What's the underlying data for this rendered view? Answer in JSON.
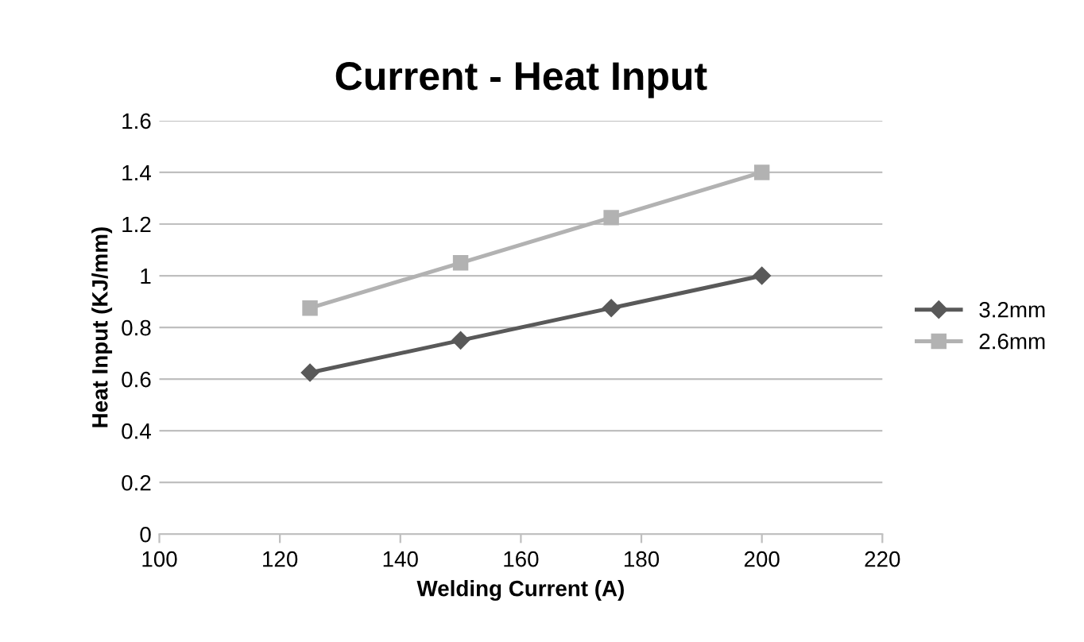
{
  "chart_data": {
    "type": "line",
    "title": "Current - Heat Input",
    "xlabel": "Welding Current (A)",
    "ylabel": "Heat Input (KJ/mm)",
    "x": [
      125,
      150,
      175,
      200
    ],
    "series": [
      {
        "name": "3.2mm",
        "color": "#595959",
        "marker": "diamond",
        "values": [
          0.625,
          0.75,
          0.875,
          1.0
        ]
      },
      {
        "name": "2.6mm",
        "color": "#b2b2b2",
        "marker": "square",
        "values": [
          0.875,
          1.05,
          1.225,
          1.4
        ]
      }
    ],
    "xlim": [
      100,
      220
    ],
    "xticks": [
      100,
      120,
      140,
      160,
      180,
      200,
      220
    ],
    "ylim": [
      0,
      1.6
    ],
    "yticks": [
      0,
      {
        "value": 0.2,
        "label": "0.2"
      },
      {
        "value": 0.4,
        "label": "0.4"
      },
      {
        "value": 0.6,
        "label": "0.6"
      },
      {
        "value": 0.8,
        "label": "0.8"
      },
      1,
      {
        "value": 1.2,
        "label": "1.2"
      },
      {
        "value": 1.4,
        "label": "1.4"
      },
      {
        "value": 1.6,
        "label": "1.6"
      }
    ],
    "grid": "y",
    "legend": "right",
    "line_style": "solid"
  }
}
